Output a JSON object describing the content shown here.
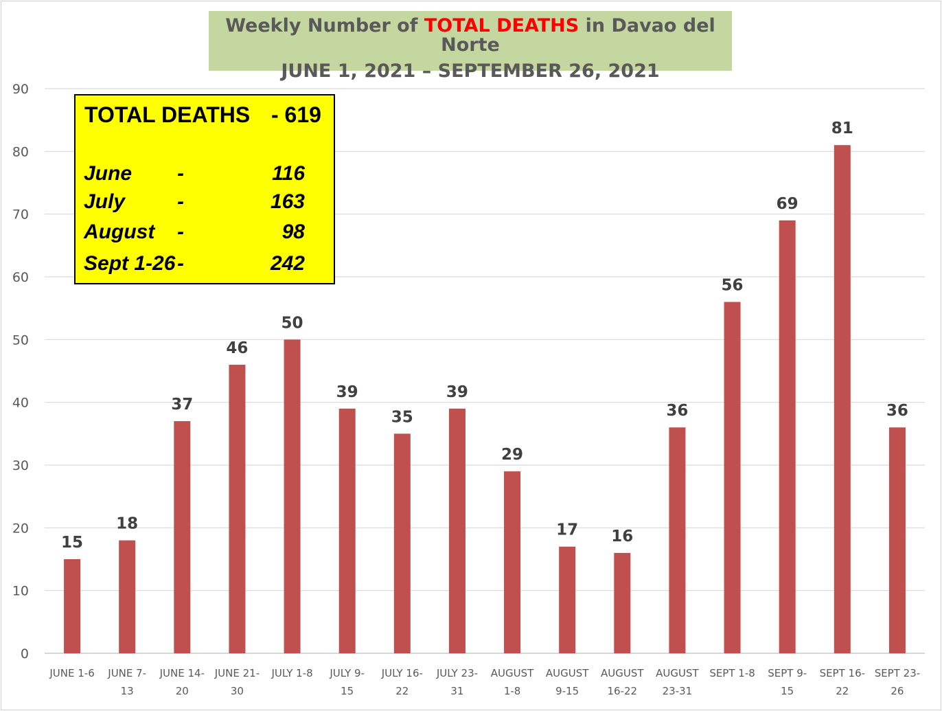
{
  "title": {
    "line1_prefix": "Weekly Number of ",
    "line1_highlight": "TOTAL DEATHS",
    "line1_suffix": " in Davao del Norte",
    "line2": "JUNE 1, 2021 – SEPTEMBER 26, 2021"
  },
  "summary": {
    "total_label": "TOTAL DEATHS",
    "total_value": "- 619",
    "rows": [
      {
        "month": "June",
        "dash": "-",
        "value": "116"
      },
      {
        "month": "July",
        "dash": "-",
        "value": "163"
      },
      {
        "month": "August",
        "dash": "-",
        "value": "98"
      },
      {
        "month": "Sept 1-26",
        "dash": "-",
        "value": "242"
      }
    ]
  },
  "colors": {
    "bar": "#c0504d",
    "title_bg": "#c4d7a0",
    "highlight": "#ff0000",
    "summary_bg": "#ffff00",
    "grid": "#d9d9d9"
  },
  "chart_data": {
    "type": "bar",
    "categories": [
      [
        "JUNE 1-6",
        ""
      ],
      [
        "JUNE 7-",
        "13"
      ],
      [
        "JUNE 14-",
        "20"
      ],
      [
        "JUNE 21-",
        "30"
      ],
      [
        "JULY 1-8",
        ""
      ],
      [
        "JULY 9-",
        "15"
      ],
      [
        "JULY 16-",
        "22"
      ],
      [
        "JULY 23-",
        "31"
      ],
      [
        "AUGUST",
        "1-8"
      ],
      [
        "AUGUST",
        "9-15"
      ],
      [
        "AUGUST",
        "16-22"
      ],
      [
        "AUGUST",
        "23-31"
      ],
      [
        "SEPT 1-8",
        ""
      ],
      [
        "SEPT 9-",
        "15"
      ],
      [
        "SEPT 16-",
        "22"
      ],
      [
        "SEPT 23-",
        "26"
      ]
    ],
    "values": [
      15,
      18,
      37,
      46,
      50,
      39,
      35,
      39,
      29,
      17,
      16,
      36,
      56,
      69,
      81,
      36
    ],
    "ylim": [
      0,
      90
    ],
    "yticks": [
      0,
      10,
      20,
      30,
      40,
      50,
      60,
      70,
      80,
      90
    ],
    "grid": true,
    "data_labels": true
  }
}
